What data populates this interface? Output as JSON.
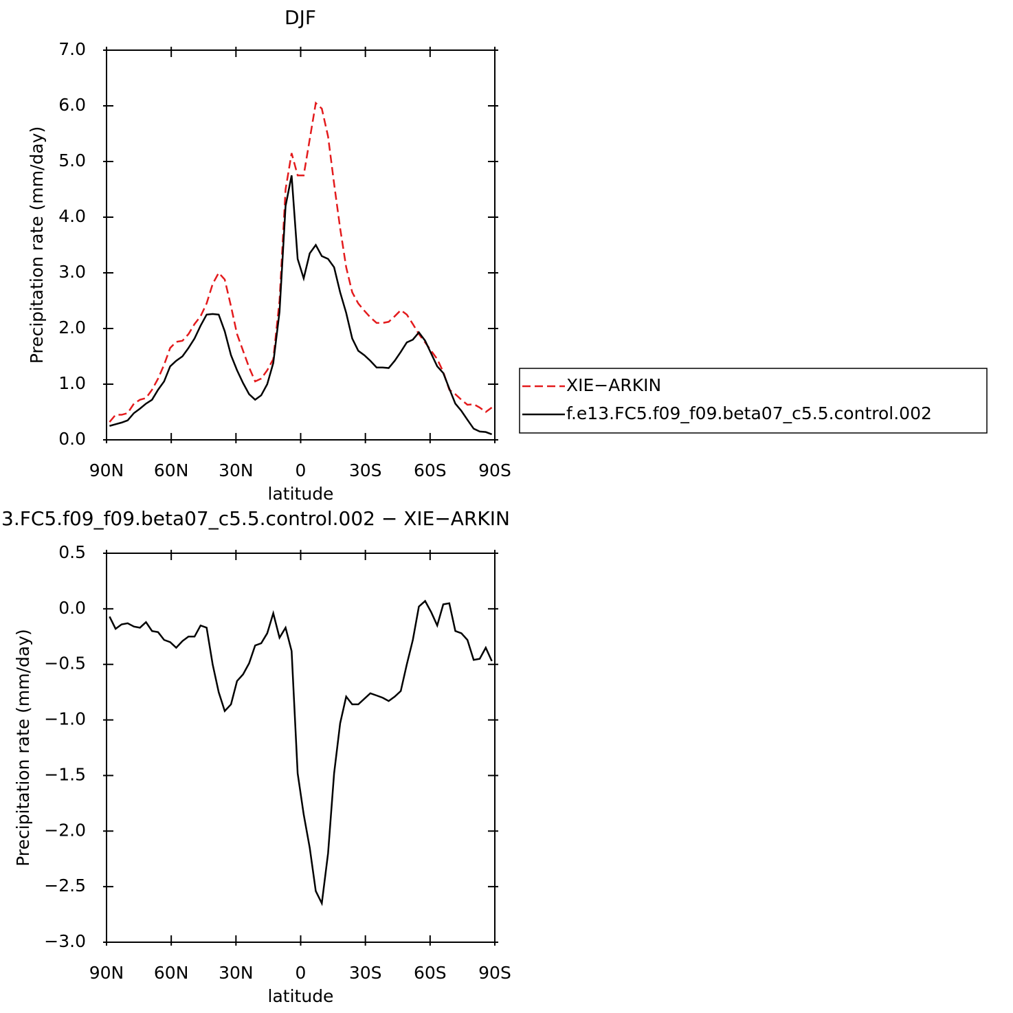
{
  "chart_data": [
    {
      "type": "line",
      "title": "DJF",
      "xlabel": "latitude",
      "ylabel": "Precipitation rate (mm/day)",
      "x": [
        88.6,
        85.8,
        83.0,
        80.2,
        77.3,
        74.5,
        71.7,
        68.9,
        66.1,
        63.3,
        60.5,
        57.7,
        54.8,
        52.0,
        49.2,
        46.4,
        43.6,
        40.8,
        38.0,
        35.2,
        32.3,
        29.5,
        26.7,
        23.9,
        21.1,
        18.3,
        15.5,
        12.7,
        9.8,
        7.0,
        4.2,
        1.4,
        -1.4,
        -4.2,
        -7.0,
        -9.8,
        -12.7,
        -15.5,
        -18.3,
        -21.1,
        -23.9,
        -26.7,
        -29.5,
        -32.3,
        -35.2,
        -38.0,
        -40.8,
        -43.6,
        -46.4,
        -49.2,
        -52.0,
        -54.8,
        -57.7,
        -60.5,
        -63.3,
        -66.1,
        -68.9,
        -71.7,
        -74.5,
        -77.3,
        -80.2,
        -83.0,
        -85.8,
        -88.6
      ],
      "series": [
        {
          "name": "XIE−ARKIN",
          "color": "#e31a1c",
          "line_style": "dashed",
          "values": [
            0.32,
            0.45,
            0.45,
            0.48,
            0.65,
            0.72,
            0.75,
            0.9,
            1.1,
            1.35,
            1.65,
            1.76,
            1.78,
            1.9,
            2.08,
            2.22,
            2.45,
            2.8,
            3.0,
            2.88,
            2.4,
            1.9,
            1.6,
            1.3,
            1.05,
            1.1,
            1.25,
            1.45,
            2.5,
            4.5,
            5.15,
            4.75,
            4.75,
            5.4,
            6.05,
            5.95,
            5.45,
            4.6,
            3.8,
            3.1,
            2.65,
            2.45,
            2.32,
            2.2,
            2.1,
            2.1,
            2.12,
            2.22,
            2.33,
            2.25,
            2.08,
            1.9,
            1.75,
            1.6,
            1.45,
            1.22,
            0.9,
            0.82,
            0.72,
            0.63,
            0.64,
            0.58,
            0.5,
            0.58
          ]
        },
        {
          "name": "f.e13.FC5.f09_f09.beta07_c5.5.control.002",
          "color": "#000000",
          "line_style": "solid",
          "values": [
            0.25,
            0.28,
            0.31,
            0.35,
            0.48,
            0.56,
            0.65,
            0.72,
            0.9,
            1.05,
            1.32,
            1.42,
            1.5,
            1.65,
            1.82,
            2.05,
            2.25,
            2.26,
            2.25,
            1.95,
            1.52,
            1.25,
            1.02,
            0.82,
            0.72,
            0.8,
            1.0,
            1.38,
            2.3,
            4.2,
            4.75,
            3.25,
            2.9,
            3.35,
            3.5,
            3.3,
            3.25,
            3.1,
            2.65,
            2.28,
            1.82,
            1.6,
            1.52,
            1.42,
            1.3,
            1.3,
            1.29,
            1.42,
            1.58,
            1.75,
            1.8,
            1.93,
            1.78,
            1.55,
            1.32,
            1.2,
            0.92,
            0.65,
            0.52,
            0.36,
            0.2,
            0.15,
            0.14,
            0.1
          ]
        }
      ],
      "xlim": [
        90,
        -90
      ],
      "xticks": [
        {
          "value": 90,
          "label": "90N"
        },
        {
          "value": 60,
          "label": "60N"
        },
        {
          "value": 30,
          "label": "30N"
        },
        0,
        {
          "value": -30,
          "label": "30S"
        },
        {
          "value": -60,
          "label": "60S"
        },
        {
          "value": -90,
          "label": "90S"
        }
      ],
      "ylim": [
        0,
        7
      ],
      "yticks": [
        {
          "value": 0,
          "label": "0.0"
        },
        {
          "value": 1,
          "label": "1.0"
        },
        {
          "value": 2,
          "label": "2.0"
        },
        {
          "value": 3,
          "label": "3.0"
        },
        {
          "value": 4,
          "label": "4.0"
        },
        {
          "value": 5,
          "label": "5.0"
        },
        {
          "value": 6,
          "label": "6.0"
        },
        {
          "value": 7,
          "label": "7.0"
        }
      ],
      "legend": "right"
    },
    {
      "type": "line",
      "title": "3.FC5.f09_f09.beta07_c5.5.control.002 − XIE−ARKIN",
      "xlabel": "latitude",
      "ylabel": "Precipitation rate (mm/day)",
      "x": [
        88.6,
        85.8,
        83.0,
        80.2,
        77.3,
        74.5,
        71.7,
        68.9,
        66.1,
        63.3,
        60.5,
        57.7,
        54.8,
        52.0,
        49.2,
        46.4,
        43.6,
        40.8,
        38.0,
        35.2,
        32.3,
        29.5,
        26.7,
        23.9,
        21.1,
        18.3,
        15.5,
        12.7,
        9.8,
        7.0,
        4.2,
        1.4,
        -1.4,
        -4.2,
        -7.0,
        -9.8,
        -12.7,
        -15.5,
        -18.3,
        -21.1,
        -23.9,
        -26.7,
        -29.5,
        -32.3,
        -35.2,
        -38.0,
        -40.8,
        -43.6,
        -46.4,
        -49.2,
        -52.0,
        -54.8,
        -57.7,
        -60.5,
        -63.3,
        -66.1,
        -68.9,
        -71.7,
        -74.5,
        -77.3,
        -80.2,
        -83.0,
        -85.8,
        -88.6
      ],
      "series": [
        {
          "color": "#000000",
          "line_style": "solid",
          "values": [
            -0.07,
            -0.18,
            -0.14,
            -0.13,
            -0.16,
            -0.17,
            -0.12,
            -0.2,
            -0.21,
            -0.28,
            -0.3,
            -0.35,
            -0.29,
            -0.25,
            -0.25,
            -0.15,
            -0.17,
            -0.5,
            -0.75,
            -0.92,
            -0.86,
            -0.65,
            -0.59,
            -0.49,
            -0.33,
            -0.31,
            -0.22,
            -0.04,
            -0.26,
            -0.17,
            -0.38,
            -1.48,
            -1.85,
            -2.15,
            -2.54,
            -2.65,
            -2.2,
            -1.48,
            -1.03,
            -0.79,
            -0.86,
            -0.86,
            -0.81,
            -0.76,
            -0.78,
            -0.8,
            -0.83,
            -0.79,
            -0.74,
            -0.5,
            -0.28,
            0.02,
            0.07,
            -0.03,
            -0.15,
            0.04,
            0.05,
            -0.2,
            -0.22,
            -0.28,
            -0.46,
            -0.45,
            -0.35,
            -0.47
          ]
        }
      ],
      "xlim": [
        90,
        -90
      ],
      "xticks": [
        {
          "value": 90,
          "label": "90N"
        },
        {
          "value": 60,
          "label": "60N"
        },
        {
          "value": 30,
          "label": "30N"
        },
        0,
        {
          "value": -30,
          "label": "30S"
        },
        {
          "value": -60,
          "label": "60S"
        },
        {
          "value": -90,
          "label": "90S"
        }
      ],
      "ylim": [
        -3,
        0.5
      ],
      "yticks": [
        {
          "value": -3,
          "label": "−3.0"
        },
        {
          "value": -2.5,
          "label": "−2.5"
        },
        {
          "value": -2,
          "label": "−2.0"
        },
        {
          "value": -1.5,
          "label": "−1.5"
        },
        {
          "value": -1,
          "label": "−1.0"
        },
        {
          "value": -0.5,
          "label": "−0.5"
        },
        {
          "value": 0,
          "label": "0.0"
        },
        0.5
      ]
    }
  ]
}
